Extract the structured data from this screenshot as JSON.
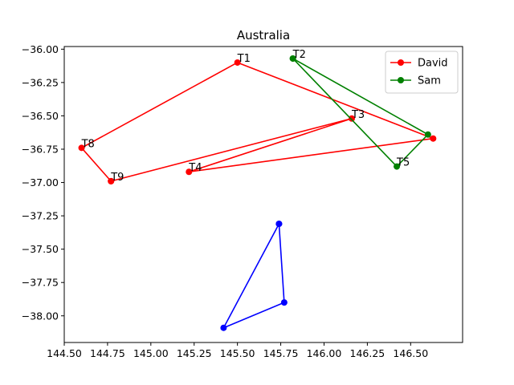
{
  "chart_data": {
    "type": "line",
    "title": "Australia",
    "xlabel": "",
    "ylabel": "",
    "xlim": [
      144.5,
      146.8
    ],
    "ylim": [
      -38.2,
      -35.98
    ],
    "xticks": [
      144.5,
      144.75,
      145.0,
      145.25,
      145.5,
      145.75,
      146.0,
      146.25,
      146.5
    ],
    "xtick_labels": [
      "144.50",
      "144.75",
      "145.00",
      "145.25",
      "145.50",
      "145.75",
      "146.00",
      "146.25",
      "146.50"
    ],
    "yticks": [
      -36.0,
      -36.25,
      -36.5,
      -36.75,
      -37.0,
      -37.25,
      -37.5,
      -37.75,
      -38.0
    ],
    "ytick_labels": [
      "−36.00",
      "−36.25",
      "−36.50",
      "−36.75",
      "−37.00",
      "−37.25",
      "−37.50",
      "−37.75",
      "−38.00"
    ],
    "grid": false,
    "legend": "top-right",
    "series": [
      {
        "name": "David",
        "color": "#ff0000",
        "in_legend": true,
        "points": [
          {
            "x": 144.77,
            "y": -36.99,
            "label": "T9"
          },
          {
            "x": 144.6,
            "y": -36.74,
            "label": "T8"
          },
          {
            "x": 145.5,
            "y": -36.1,
            "label": "T1"
          },
          {
            "x": 146.63,
            "y": -36.67,
            "label": ""
          },
          {
            "x": 145.22,
            "y": -36.92,
            "label": "T4"
          },
          {
            "x": 146.16,
            "y": -36.52,
            "label": "T3"
          },
          {
            "x": 144.77,
            "y": -36.99,
            "label": ""
          }
        ]
      },
      {
        "name": "Sam",
        "color": "#008000",
        "in_legend": true,
        "points": [
          {
            "x": 145.82,
            "y": -36.07,
            "label": "T2"
          },
          {
            "x": 146.6,
            "y": -36.64,
            "label": ""
          },
          {
            "x": 146.42,
            "y": -36.88,
            "label": "T5"
          },
          {
            "x": 145.82,
            "y": -36.07,
            "label": ""
          }
        ]
      },
      {
        "name": "",
        "color": "#0000ff",
        "in_legend": false,
        "points": [
          {
            "x": 145.74,
            "y": -37.31,
            "label": ""
          },
          {
            "x": 145.77,
            "y": -37.9,
            "label": ""
          },
          {
            "x": 145.42,
            "y": -38.09,
            "label": ""
          },
          {
            "x": 145.74,
            "y": -37.31,
            "label": ""
          }
        ]
      }
    ]
  }
}
